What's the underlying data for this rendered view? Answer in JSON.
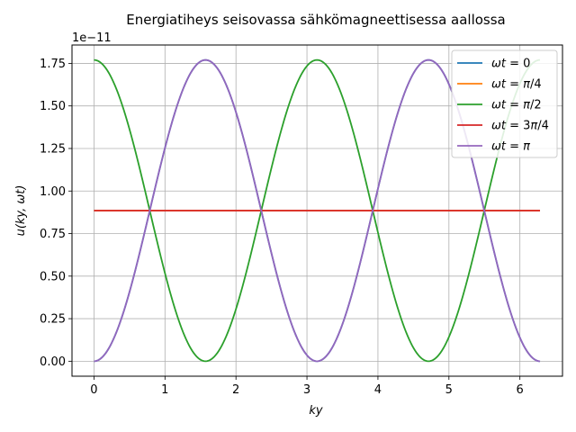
{
  "chart_data": {
    "type": "line",
    "title": "Energiatiheys seisovassa sähkömagneettisessa aallossa",
    "xlabel": "ky",
    "ylabel": "u(ky, ωt)",
    "y_offset_label": "1e−11",
    "xlim": [
      -0.31,
      6.6
    ],
    "ylim": [
      -8.8e-13,
      1.858e-11
    ],
    "x_ticks": [
      0,
      1,
      2,
      3,
      4,
      5,
      6
    ],
    "x_tick_labels": [
      "0",
      "1",
      "2",
      "3",
      "4",
      "5",
      "6"
    ],
    "y_ticks": [
      0.0,
      2.5e-12,
      5e-12,
      7.5e-12,
      1e-11,
      1.25e-11,
      1.5e-11,
      1.75e-11
    ],
    "y_tick_labels": [
      "0.00",
      "0.25",
      "0.50",
      "0.75",
      "1.00",
      "1.25",
      "1.50",
      "1.75"
    ],
    "grid": true,
    "legend_position": "top-right",
    "x_range": [
      0,
      6.2832
    ],
    "amplitude": 1.77e-11,
    "series": [
      {
        "name": "ωt = 0",
        "label_html": "<tspan font-style='italic'>ωt</tspan> = 0",
        "color": "#1f77b4",
        "formula": "A*sin^2(x)"
      },
      {
        "name": "ωt = π/4",
        "label_html": "<tspan font-style='italic'>ωt</tspan> = <tspan font-style='italic'>π</tspan>/4",
        "color": "#ff7f0e",
        "formula": "A/2 constant"
      },
      {
        "name": "ωt = π/2",
        "label_html": "<tspan font-style='italic'>ωt</tspan> = <tspan font-style='italic'>π</tspan>/2",
        "color": "#2ca02c",
        "formula": "A*cos^2(x)"
      },
      {
        "name": "ωt = 3π/4",
        "label_html": "<tspan font-style='italic'>ωt</tspan> = 3<tspan font-style='italic'>π</tspan>/4",
        "color": "#d62728",
        "formula": "A/2 constant"
      },
      {
        "name": "ωt = π",
        "label_html": "<tspan font-style='italic'>ωt</tspan> = <tspan font-style='italic'>π</tspan>",
        "color": "#9467bd",
        "formula": "A*sin^2(x)"
      }
    ]
  }
}
